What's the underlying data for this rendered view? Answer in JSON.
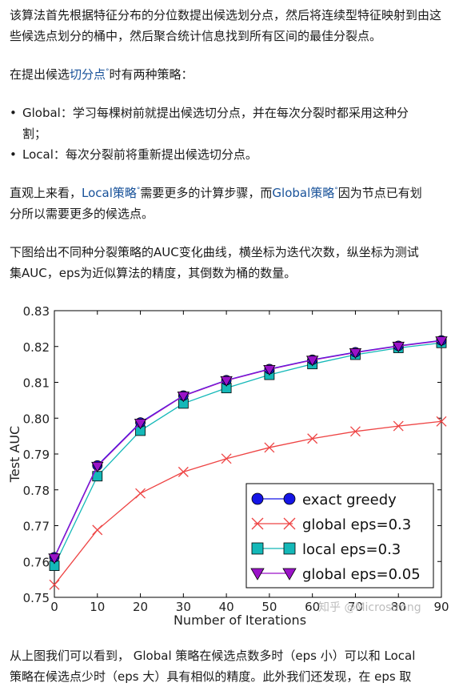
{
  "para1": "该算法首先根据特征分布的分位数提出候选划分点，然后将连续型特征映射到由这些候选点划分的桶中，然后聚合统计信息找到所有区间的最佳分裂点。",
  "para2": {
    "before": "在提出候选",
    "link": "切分点",
    "after": "时有两种策略："
  },
  "bullets": [
    {
      "line1": "Global：学习每棵树前就提出候选切分点，并在每次分裂时都采用这种分",
      "line2": "割；"
    },
    {
      "line1": "Local：每次分裂前将重新提出候选切分点。",
      "line2": ""
    }
  ],
  "para3": {
    "line1_before": "直观上来看，",
    "link1": "Local策略",
    "line1_mid": "需要更多的计算步骤，而",
    "link2": "Global策略",
    "line1_after": "因为节点已有划",
    "line2": "分所以需要更多的候选点。"
  },
  "para4": {
    "line1": "下图给出不同种分裂策略的AUC变化曲线，横坐标为迭代次数，纵坐标为测试",
    "line2": "集AUC，eps为近似算法的精度，其倒数为桶的数量。"
  },
  "para5": {
    "line1": "从上图我们可以看到， Global 策略在候选点数多时（eps 小）可以和 Local",
    "line2": "策略在候选点少时（eps 大）具有相似的精度。此外我们还发现，在 eps 取"
  },
  "watermark": "知乎 @Microstrong",
  "colors": {
    "link": "#175199",
    "text": "#1a1a1a",
    "exact": "#1515e6",
    "global03": "#ee4444",
    "local03": "#14b8b8",
    "global005": "#9a12c8"
  },
  "chart_data": {
    "type": "line",
    "xlabel": "Number of Iterations",
    "ylabel": "Test AUC",
    "xlim": [
      0,
      90
    ],
    "ylim": [
      0.75,
      0.83
    ],
    "xticks": [
      0,
      10,
      20,
      30,
      40,
      50,
      60,
      70,
      80,
      90
    ],
    "xtick_labels": [
      "0",
      "10",
      "20",
      "30",
      "40",
      "50",
      "60",
      "70",
      "80",
      "90"
    ],
    "yticks": [
      0.75,
      0.76,
      0.77,
      0.78,
      0.79,
      0.8,
      0.81,
      0.82,
      0.83
    ],
    "ytick_labels": [
      "0.75",
      "0.76",
      "0.77",
      "0.78",
      "0.79",
      "0.80",
      "0.81",
      "0.82",
      "0.83"
    ],
    "grid": false,
    "legend_position": "lower-right",
    "x": [
      0,
      10,
      20,
      30,
      40,
      50,
      60,
      70,
      80,
      90
    ],
    "series": [
      {
        "name": "exact greedy",
        "marker": "circle",
        "color": "#1515e6",
        "values": [
          0.7612,
          0.7868,
          0.7988,
          0.8063,
          0.8106,
          0.8137,
          0.8163,
          0.8184,
          0.8202,
          0.8217
        ]
      },
      {
        "name": "global eps=0.3",
        "marker": "x",
        "color": "#ee4444",
        "values": [
          0.7535,
          0.7688,
          0.779,
          0.785,
          0.7887,
          0.7918,
          0.7943,
          0.7963,
          0.7978,
          0.7991
        ]
      },
      {
        "name": "local eps=0.3",
        "marker": "square",
        "color": "#14b8b8",
        "values": [
          0.7588,
          0.7838,
          0.7965,
          0.8041,
          0.8084,
          0.8121,
          0.8151,
          0.8177,
          0.8196,
          0.821
        ]
      },
      {
        "name": "global eps=0.05",
        "marker": "triangle-down",
        "color": "#9a12c8",
        "values": [
          0.761,
          0.7866,
          0.7986,
          0.8062,
          0.8105,
          0.8136,
          0.8162,
          0.8183,
          0.8201,
          0.8216
        ]
      }
    ]
  }
}
